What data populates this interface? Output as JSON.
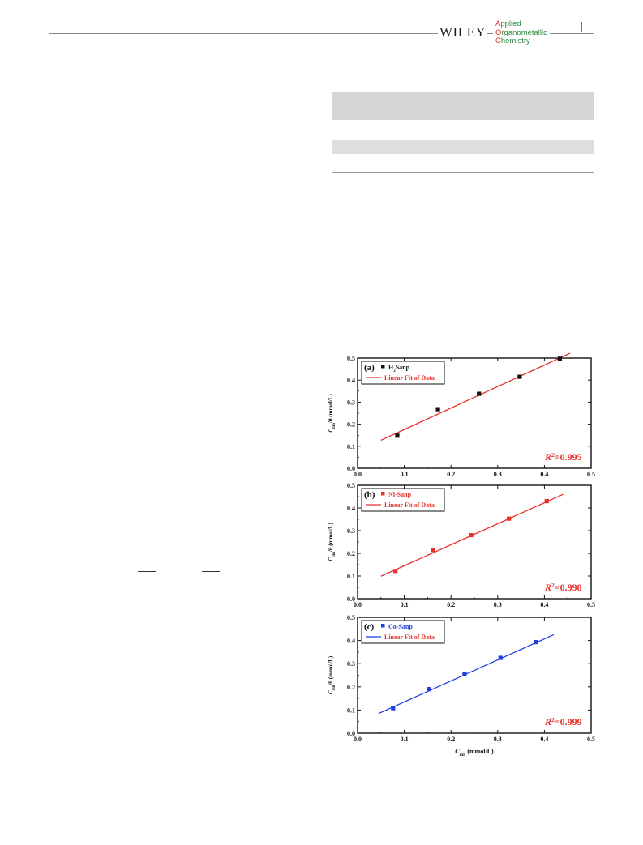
{
  "header": {
    "publisher": "WILEY",
    "journal_initials": [
      "A",
      "O",
      "C"
    ],
    "journal_rest": [
      "pplied",
      "rganometallic",
      "hemistry"
    ]
  },
  "figure": {
    "x_axis_label": "C",
    "x_axis_label_sub": "inh",
    "x_axis_label_unit": " (mmol/L)",
    "y_axis_label": "C",
    "y_axis_label_sub": "inh",
    "y_axis_label_unit": "/θ (mmol/L)"
  },
  "chart_data": [
    {
      "type": "scatter",
      "panel": "(a)",
      "series": [
        {
          "name": "H₂Sanp",
          "x": [
            0.085,
            0.172,
            0.26,
            0.347,
            0.433
          ],
          "y": [
            0.148,
            0.268,
            0.338,
            0.415,
            0.497
          ],
          "color": "#111111"
        },
        {
          "name": "Linear Fit of Data",
          "x": [
            0.05,
            0.455
          ],
          "y": [
            0.127,
            0.522
          ],
          "color": "#e8302a"
        }
      ],
      "annotation": "R²=0.995",
      "annotation_color": "#e8302a",
      "xlim": [
        0.0,
        0.5
      ],
      "ylim": [
        0.0,
        0.5
      ],
      "xticks": [
        "0.0",
        "0.1",
        "0.2",
        "0.3",
        "0.4",
        "0.5"
      ],
      "yticks": [
        "0.0",
        "0.1",
        "0.2",
        "0.3",
        "0.4",
        "0.5"
      ],
      "legend": "top-left"
    },
    {
      "type": "scatter",
      "panel": "(b)",
      "series": [
        {
          "name": "Ni-Sanp",
          "x": [
            0.081,
            0.162,
            0.243,
            0.324,
            0.405
          ],
          "y": [
            0.122,
            0.215,
            0.28,
            0.353,
            0.43
          ],
          "color": "#e8302a"
        },
        {
          "name": "Linear Fit of Data",
          "x": [
            0.05,
            0.44
          ],
          "y": [
            0.099,
            0.46
          ],
          "color": "#e8302a"
        }
      ],
      "annotation": "R²=0.998",
      "annotation_color": "#e8302a",
      "xlim": [
        0.0,
        0.5
      ],
      "ylim": [
        0.0,
        0.5
      ],
      "xticks": [
        "0.0",
        "0.1",
        "0.2",
        "0.3",
        "0.4",
        "0.5"
      ],
      "yticks": [
        "0.0",
        "0.1",
        "0.2",
        "0.3",
        "0.4",
        "0.5"
      ],
      "legend": "top-left"
    },
    {
      "type": "scatter",
      "panel": "(c)",
      "series": [
        {
          "name": "Co-Sanp",
          "x": [
            0.076,
            0.153,
            0.229,
            0.306,
            0.382
          ],
          "y": [
            0.108,
            0.19,
            0.255,
            0.325,
            0.393
          ],
          "color": "#1f3fe0"
        },
        {
          "name": "Linear Fit of Data",
          "x": [
            0.045,
            0.42
          ],
          "y": [
            0.085,
            0.425
          ],
          "color": "#1f3fe0"
        }
      ],
      "annotation": "R²=0.999",
      "annotation_color": "#e8302a",
      "xlim": [
        0.0,
        0.5
      ],
      "ylim": [
        0.0,
        0.5
      ],
      "xticks": [
        "0.0",
        "0.1",
        "0.2",
        "0.3",
        "0.4",
        "0.5"
      ],
      "yticks": [
        "0.0",
        "0.1",
        "0.2",
        "0.3",
        "0.4",
        "0.5"
      ],
      "legend": "top-left"
    }
  ]
}
